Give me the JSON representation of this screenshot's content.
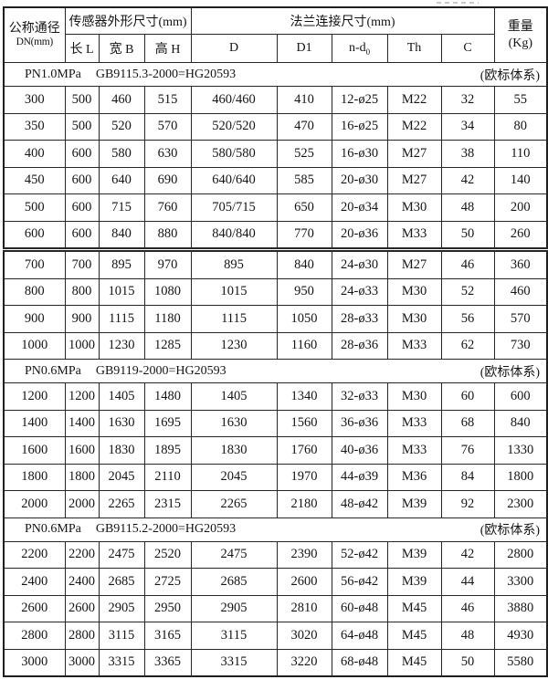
{
  "page": {
    "background": "#ffffff",
    "border_color": "#262626",
    "text_color": "#141414"
  },
  "table": {
    "header": {
      "dn_title": "公称通径",
      "dn_sub": "DN(mm)",
      "sensor_group": "传感器外形尺寸(mm)",
      "flange_group": "法兰连接尺寸(mm)",
      "weight_title": "重量",
      "weight_unit": "(Kg)",
      "sub_columns": [
        {
          "key": "length-l",
          "text": "长 L"
        },
        {
          "key": "width-b",
          "text": "宽 B"
        },
        {
          "key": "height-h",
          "text": "高 H"
        },
        {
          "key": "d",
          "text": "D"
        },
        {
          "key": "d1",
          "text": "D1"
        },
        {
          "key": "n-d0",
          "text": "n-d",
          "sub": "0"
        },
        {
          "key": "th",
          "text": "Th"
        },
        {
          "key": "c",
          "text": "C"
        }
      ]
    },
    "column_keys": [
      "dn",
      "length-l",
      "width-b",
      "height-h",
      "d",
      "d1",
      "n-d0",
      "th",
      "c",
      "weight"
    ],
    "layout": {
      "double_border_above_dn": "700"
    },
    "sections": [
      {
        "pressure": "PN1.0MPa",
        "standard": "GB9115.3-2000=HG20593",
        "note": "(欧标体系)",
        "rows": [
          [
            "300",
            "500",
            "460",
            "515",
            "460/460",
            "410",
            "12-ø25",
            "M22",
            "32",
            "55"
          ],
          [
            "350",
            "500",
            "520",
            "570",
            "520/520",
            "470",
            "16-ø25",
            "M22",
            "34",
            "80"
          ],
          [
            "400",
            "600",
            "580",
            "630",
            "580/580",
            "525",
            "16-ø30",
            "M27",
            "38",
            "110"
          ],
          [
            "450",
            "600",
            "640",
            "690",
            "640/640",
            "585",
            "20-ø30",
            "M27",
            "42",
            "140"
          ],
          [
            "500",
            "600",
            "715",
            "760",
            "705/715",
            "650",
            "20-ø34",
            "M30",
            "48",
            "200"
          ],
          [
            "600",
            "600",
            "840",
            "880",
            "840/840",
            "770",
            "20-ø36",
            "M33",
            "50",
            "260"
          ],
          [
            "700",
            "700",
            "895",
            "970",
            "895",
            "840",
            "24-ø30",
            "M27",
            "46",
            "360"
          ],
          [
            "800",
            "800",
            "1015",
            "1080",
            "1015",
            "950",
            "24-ø33",
            "M30",
            "52",
            "460"
          ],
          [
            "900",
            "900",
            "1115",
            "1180",
            "1115",
            "1050",
            "28-ø33",
            "M30",
            "56",
            "570"
          ],
          [
            "1000",
            "1000",
            "1230",
            "1285",
            "1230",
            "1160",
            "28-ø36",
            "M33",
            "62",
            "730"
          ]
        ]
      },
      {
        "pressure": "PN0.6MPa",
        "standard": "GB9119-2000=HG20593",
        "note": "(欧标体系)",
        "rows": [
          [
            "1200",
            "1200",
            "1405",
            "1480",
            "1405",
            "1340",
            "32-ø33",
            "M30",
            "60",
            "600"
          ],
          [
            "1400",
            "1400",
            "1630",
            "1695",
            "1630",
            "1560",
            "36-ø36",
            "M33",
            "68",
            "840"
          ],
          [
            "1600",
            "1600",
            "1830",
            "1895",
            "1830",
            "1760",
            "40-ø36",
            "M33",
            "76",
            "1330"
          ],
          [
            "1800",
            "1800",
            "2045",
            "2110",
            "2045",
            "1970",
            "44-ø39",
            "M36",
            "84",
            "1800"
          ],
          [
            "2000",
            "2000",
            "2265",
            "2315",
            "2265",
            "2180",
            "48-ø42",
            "M39",
            "92",
            "2300"
          ]
        ]
      },
      {
        "pressure": "PN0.6MPa",
        "standard": "GB9115.2-2000=HG20593",
        "note": "(欧标体系)",
        "rows": [
          [
            "2200",
            "2200",
            "2475",
            "2520",
            "2475",
            "2390",
            "52-ø42",
            "M39",
            "42",
            "2800"
          ],
          [
            "2400",
            "2400",
            "2685",
            "2725",
            "2685",
            "2600",
            "56-ø42",
            "M39",
            "44",
            "3300"
          ],
          [
            "2600",
            "2600",
            "2905",
            "2950",
            "2905",
            "2810",
            "60-ø48",
            "M45",
            "46",
            "3880"
          ],
          [
            "2800",
            "2800",
            "3115",
            "3165",
            "3115",
            "3020",
            "64-ø48",
            "M45",
            "48",
            "4930"
          ],
          [
            "3000",
            "3000",
            "3315",
            "3365",
            "3315",
            "3220",
            "68-ø48",
            "M45",
            "50",
            "5580"
          ]
        ]
      }
    ]
  }
}
